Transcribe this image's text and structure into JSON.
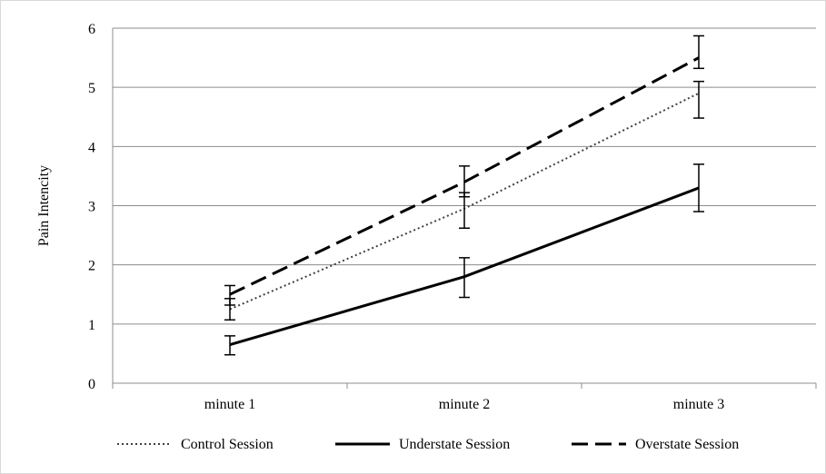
{
  "chart_data": {
    "type": "line",
    "title": "",
    "xlabel": "",
    "ylabel": "Pain Intencity",
    "categories": [
      "minute 1",
      "minute 2",
      "minute 3"
    ],
    "ylim": [
      0,
      6
    ],
    "yticks": [
      0,
      1,
      2,
      3,
      4,
      5,
      6
    ],
    "grid": true,
    "legend_position": "bottom",
    "series": [
      {
        "name": "Control Session",
        "style": "dotted",
        "color": "#404040",
        "values": [
          1.25,
          2.95,
          4.9
        ],
        "error": [
          [
            1.07,
            1.43
          ],
          [
            2.62,
            3.22
          ],
          [
            4.48,
            5.1
          ]
        ]
      },
      {
        "name": "Understate Session",
        "style": "solid",
        "color": "#000000",
        "values": [
          0.65,
          1.8,
          3.3
        ],
        "error": [
          [
            0.48,
            0.8
          ],
          [
            1.45,
            2.12
          ],
          [
            2.9,
            3.7
          ]
        ]
      },
      {
        "name": "Overstate Session",
        "style": "dashed",
        "color": "#000000",
        "values": [
          1.5,
          3.4,
          5.5
        ],
        "error": [
          [
            1.32,
            1.65
          ],
          [
            3.15,
            3.67
          ],
          [
            5.32,
            5.87
          ]
        ]
      }
    ]
  }
}
